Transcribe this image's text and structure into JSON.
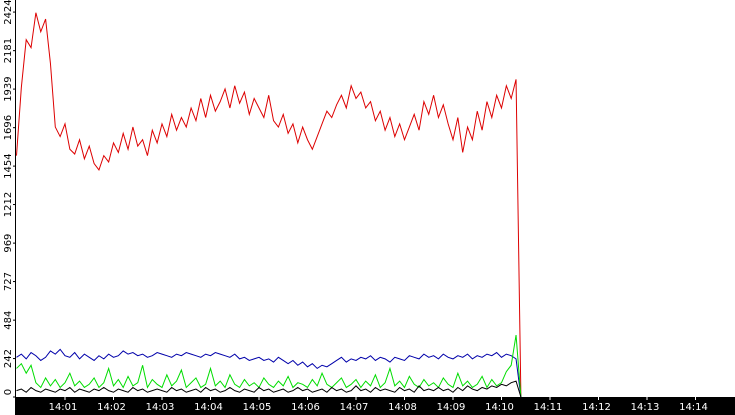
{
  "chart_data": {
    "type": "line",
    "x": [
      0,
      0.1,
      0.2,
      0.3,
      0.4,
      0.5,
      0.6,
      0.7,
      0.8,
      0.9,
      1,
      1.1,
      1.2,
      1.3,
      1.4,
      1.5,
      1.6,
      1.7,
      1.8,
      1.9,
      2,
      2.1,
      2.2,
      2.3,
      2.4,
      2.5,
      2.6,
      2.7,
      2.8,
      2.9,
      3,
      3.1,
      3.2,
      3.3,
      3.4,
      3.5,
      3.6,
      3.7,
      3.8,
      3.9,
      4,
      4.1,
      4.2,
      4.3,
      4.4,
      4.5,
      4.6,
      4.7,
      4.8,
      4.9,
      5,
      5.1,
      5.2,
      5.3,
      5.4,
      5.5,
      5.6,
      5.7,
      5.8,
      5.9,
      6,
      6.1,
      6.2,
      6.3,
      6.4,
      6.5,
      6.6,
      6.7,
      6.8,
      6.9,
      7,
      7.1,
      7.2,
      7.3,
      7.4,
      7.5,
      7.6,
      7.7,
      7.8,
      7.9,
      8,
      8.1,
      8.2,
      8.3,
      8.4,
      8.5,
      8.6,
      8.7,
      8.8,
      8.9,
      9,
      9.1,
      9.2,
      9.3,
      9.4,
      9.5,
      9.6,
      9.7,
      9.8,
      9.9,
      10,
      10.1,
      10.2,
      10.3,
      10.4
    ],
    "series": [
      {
        "color": "#dd0000",
        "values": [
          1520,
          1950,
          2250,
          2200,
          2420,
          2300,
          2380,
          2100,
          1700,
          1640,
          1720,
          1560,
          1530,
          1620,
          1500,
          1580,
          1470,
          1430,
          1520,
          1480,
          1600,
          1540,
          1660,
          1560,
          1700,
          1580,
          1620,
          1520,
          1680,
          1600,
          1720,
          1640,
          1780,
          1680,
          1760,
          1700,
          1820,
          1740,
          1880,
          1760,
          1900,
          1800,
          1860,
          1940,
          1820,
          1960,
          1850,
          1920,
          1780,
          1880,
          1820,
          1760,
          1900,
          1740,
          1700,
          1780,
          1660,
          1720,
          1600,
          1700,
          1620,
          1560,
          1640,
          1720,
          1800,
          1760,
          1840,
          1900,
          1820,
          1960,
          1880,
          1920,
          1820,
          1860,
          1740,
          1800,
          1680,
          1760,
          1640,
          1720,
          1620,
          1700,
          1780,
          1680,
          1860,
          1780,
          1900,
          1760,
          1840,
          1720,
          1620,
          1760,
          1540,
          1700,
          1620,
          1800,
          1680,
          1860,
          1760,
          1900,
          1820,
          1960,
          1880,
          2000,
          0
        ]
      },
      {
        "color": "#0000aa",
        "values": [
          250,
          270,
          240,
          280,
          260,
          230,
          250,
          290,
          270,
          300,
          260,
          250,
          280,
          240,
          270,
          250,
          230,
          260,
          240,
          270,
          250,
          260,
          290,
          270,
          280,
          260,
          270,
          250,
          260,
          280,
          270,
          260,
          250,
          270,
          260,
          280,
          270,
          260,
          250,
          270,
          260,
          280,
          270,
          260,
          250,
          270,
          240,
          250,
          230,
          240,
          250,
          230,
          240,
          220,
          250,
          230,
          210,
          230,
          200,
          220,
          190,
          210,
          180,
          200,
          190,
          210,
          230,
          250,
          220,
          240,
          230,
          250,
          240,
          260,
          230,
          250,
          240,
          220,
          250,
          240,
          230,
          260,
          250,
          240,
          270,
          250,
          260,
          240,
          270,
          250,
          240,
          260,
          250,
          270,
          240,
          260,
          250,
          270,
          260,
          280,
          250,
          270,
          260,
          240,
          0
        ]
      },
      {
        "color": "#00dd00",
        "values": [
          180,
          210,
          150,
          200,
          90,
          60,
          120,
          70,
          110,
          60,
          90,
          150,
          70,
          100,
          60,
          80,
          120,
          60,
          90,
          180,
          70,
          110,
          60,
          130,
          70,
          90,
          200,
          60,
          110,
          80,
          60,
          140,
          70,
          100,
          170,
          60,
          90,
          120,
          60,
          80,
          180,
          70,
          100,
          60,
          140,
          80,
          60,
          110,
          70,
          90,
          60,
          120,
          80,
          60,
          100,
          70,
          130,
          60,
          90,
          80,
          60,
          110,
          70,
          150,
          80,
          60,
          90,
          120,
          60,
          80,
          110,
          60,
          100,
          70,
          140,
          60,
          90,
          180,
          70,
          100,
          60,
          130,
          80,
          60,
          110,
          70,
          90,
          60,
          120,
          80,
          60,
          150,
          70,
          100,
          60,
          80,
          130,
          60,
          110,
          70,
          90,
          160,
          200,
          390,
          0
        ]
      },
      {
        "color": "#000000",
        "values": [
          40,
          50,
          30,
          60,
          40,
          30,
          50,
          40,
          30,
          50,
          40,
          60,
          30,
          50,
          40,
          30,
          50,
          40,
          60,
          40,
          30,
          50,
          40,
          30,
          60,
          40,
          50,
          30,
          40,
          50,
          40,
          30,
          60,
          40,
          50,
          30,
          40,
          50,
          30,
          60,
          40,
          50,
          30,
          40,
          60,
          40,
          30,
          50,
          40,
          30,
          60,
          40,
          50,
          30,
          40,
          50,
          30,
          40,
          60,
          40,
          50,
          30,
          40,
          50,
          30,
          60,
          40,
          50,
          30,
          40,
          70,
          40,
          50,
          30,
          60,
          40,
          50,
          40,
          30,
          60,
          40,
          50,
          30,
          70,
          40,
          50,
          40,
          60,
          40,
          50,
          30,
          60,
          40,
          70,
          50,
          40,
          60,
          50,
          70,
          60,
          80,
          70,
          90,
          100,
          0
        ]
      }
    ],
    "xlim": [
      0,
      14.85
    ],
    "xticks": [
      {
        "value": 1,
        "label": "14:01"
      },
      {
        "value": 2,
        "label": "14:02"
      },
      {
        "value": 3,
        "label": "14:03"
      },
      {
        "value": 4,
        "label": "14:04"
      },
      {
        "value": 5,
        "label": "14:05"
      },
      {
        "value": 6,
        "label": "14:06"
      },
      {
        "value": 7,
        "label": "14:07"
      },
      {
        "value": 8,
        "label": "14:08"
      },
      {
        "value": 9,
        "label": "14:09"
      },
      {
        "value": 10,
        "label": "14:10"
      },
      {
        "value": 11,
        "label": "14:11"
      },
      {
        "value": 12,
        "label": "14:12"
      },
      {
        "value": 13,
        "label": "14:13"
      },
      {
        "value": 14,
        "label": "14:14"
      }
    ],
    "ylim": [
      0,
      2500
    ],
    "yticks": [
      0,
      242,
      484,
      727,
      969,
      1212,
      1454,
      1696,
      1939,
      2181,
      2424
    ]
  }
}
